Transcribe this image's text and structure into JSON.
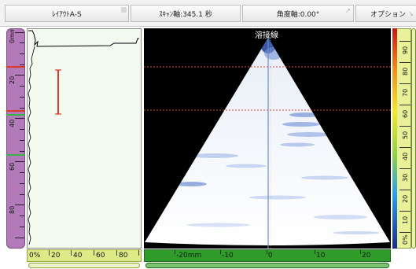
{
  "toolbar": {
    "layout_label": "ﾚｲｱｳﾄA-S",
    "scan_axis_label": "ｽｷｬﾝ軸:345.1 秒",
    "angle_axis_label": "角度軸:0.00°",
    "options_label": "オプション"
  },
  "depth_ruler": {
    "unit": "mm",
    "labels": [
      "0",
      "20",
      "40",
      "60",
      "80"
    ]
  },
  "amplitude_ruler": {
    "labels": [
      "0%",
      "20",
      "40",
      "60",
      "80"
    ]
  },
  "sector": {
    "weld_label": "溶接線"
  },
  "index_ruler": {
    "labels": [
      "-20mm",
      "-10",
      "0",
      "10",
      "20"
    ]
  },
  "palette_ruler": {
    "labels": [
      "0%",
      "10",
      "20",
      "30",
      "40",
      "50",
      "60",
      "70",
      "80",
      "90"
    ]
  },
  "colors": {
    "depth_ruler": "#b37ab9",
    "amplitude_ruler": "#ddeb87",
    "index_ruler": "#2f9c2a",
    "cursor_reference": "#d83a2a",
    "cursor_measure": "#39b34a",
    "ascan_background": "#f2f9ef"
  }
}
